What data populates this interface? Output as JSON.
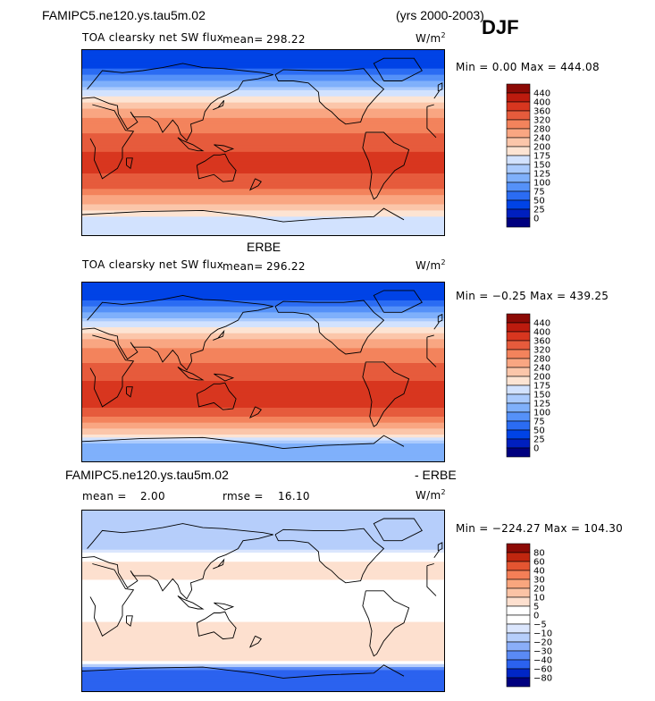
{
  "header": {
    "case_name": "FAMIPC5.ne120.ys.tau5m.02",
    "years": "(yrs 2000-2003)",
    "season": "DJF"
  },
  "colors": {
    "cool": [
      "#00007f",
      "#001fbf",
      "#0043e6",
      "#2b6cf3",
      "#5591f8",
      "#7fb0fb",
      "#aacafd",
      "#d2e2fe",
      "#f4f5ff"
    ],
    "warm": [
      "#fde4d3",
      "#fbc6aa",
      "#f9a682",
      "#f3835c",
      "#e65b3c",
      "#d8361f",
      "#bc1b0e",
      "#8c0a05"
    ],
    "diff": [
      "#00007f",
      "#0026c6",
      "#2b62ef",
      "#5a8af5",
      "#8aaef9",
      "#b6cefb",
      "#dbe6fd",
      "#ffffff",
      "#fde0cf",
      "#fbc3a5",
      "#f9a67e",
      "#f47f57",
      "#e45531",
      "#c0260f",
      "#8c0a05"
    ]
  },
  "panels": [
    {
      "title": "TOA clearsky net SW flux",
      "mean_label": "mean=",
      "mean_value": "298.22",
      "units": "W/m",
      "units_exp": "2",
      "minmax": "Min =    0.00 Max = 444.08",
      "colorbar_ticks": [
        "440",
        "400",
        "360",
        "320",
        "280",
        "240",
        "200",
        "175",
        "150",
        "125",
        "100",
        "75",
        "50",
        "25",
        "0"
      ],
      "chart_data": {
        "type": "heatmap",
        "title": "TOA clearsky net SW flux",
        "variable": "TOA clearsky net SW flux",
        "units": "W/m2",
        "mean": 298.22,
        "min": 0.0,
        "max": 444.08,
        "contour_levels": [
          0,
          25,
          50,
          75,
          100,
          125,
          150,
          175,
          200,
          240,
          280,
          320,
          360,
          400,
          440
        ],
        "latitude_band_approx": [
          {
            "lat": 80,
            "value": 25
          },
          {
            "lat": 60,
            "value": 100
          },
          {
            "lat": 40,
            "value": 200
          },
          {
            "lat": 20,
            "value": 300
          },
          {
            "lat": 0,
            "value": 340
          },
          {
            "lat": -20,
            "value": 380
          },
          {
            "lat": -40,
            "value": 340
          },
          {
            "lat": -60,
            "value": 240
          },
          {
            "lat": -75,
            "value": 150
          }
        ]
      }
    },
    {
      "title": "TOA clearsky net SW flux",
      "mean_label": "mean=",
      "mean_value": "296.22",
      "units": "W/m",
      "units_exp": "2",
      "heading": "ERBE",
      "minmax": "Min =  −0.25 Max = 439.25",
      "colorbar_ticks": [
        "440",
        "400",
        "360",
        "320",
        "280",
        "240",
        "200",
        "175",
        "150",
        "125",
        "100",
        "75",
        "50",
        "25",
        "0"
      ],
      "chart_data": {
        "type": "heatmap",
        "title": "TOA clearsky net SW flux",
        "variable": "TOA clearsky net SW flux",
        "units": "W/m2",
        "mean": 296.22,
        "min": -0.25,
        "max": 439.25,
        "contour_levels": [
          0,
          25,
          50,
          75,
          100,
          125,
          150,
          175,
          200,
          240,
          280,
          320,
          360,
          400,
          440
        ],
        "latitude_band_approx": [
          {
            "lat": 80,
            "value": 25
          },
          {
            "lat": 60,
            "value": 100
          },
          {
            "lat": 40,
            "value": 200
          },
          {
            "lat": 20,
            "value": 300
          },
          {
            "lat": 0,
            "value": 340
          },
          {
            "lat": -20,
            "value": 390
          },
          {
            "lat": -40,
            "value": 350
          },
          {
            "lat": -60,
            "value": 230
          },
          {
            "lat": -75,
            "value": 100
          }
        ]
      }
    },
    {
      "case_name": "FAMIPC5.ne120.ys.tau5m.02",
      "suffix": "- ERBE",
      "mean_label": "mean =",
      "mean_value": "2.00",
      "rmse_label": "rmse =",
      "rmse_value": "16.10",
      "units": "W/m",
      "units_exp": "2",
      "minmax": "Min = −224.27 Max = 104.30",
      "colorbar_ticks": [
        "80",
        "60",
        "40",
        "30",
        "20",
        "10",
        "5",
        "0",
        "−5",
        "−10",
        "−20",
        "−30",
        "−40",
        "−60",
        "−80"
      ],
      "chart_data": {
        "type": "heatmap",
        "title": "FAMIPC5.ne120.ys.tau5m.02 - ERBE",
        "variable": "TOA clearsky net SW flux difference",
        "units": "W/m2",
        "mean": 2.0,
        "rmse": 16.1,
        "min": -224.27,
        "max": 104.3,
        "contour_levels": [
          -80,
          -60,
          -40,
          -30,
          -20,
          -10,
          -5,
          0,
          5,
          10,
          20,
          30,
          40,
          60,
          80
        ],
        "latitude_band_approx": [
          {
            "lat": 60,
            "value": -20
          },
          {
            "lat": 40,
            "value": 5
          },
          {
            "lat": 20,
            "value": 5
          },
          {
            "lat": 0,
            "value": 0
          },
          {
            "lat": -20,
            "value": 5
          },
          {
            "lat": -40,
            "value": 5
          },
          {
            "lat": -60,
            "value": 10
          },
          {
            "lat": -72,
            "value": -60
          }
        ]
      }
    }
  ]
}
